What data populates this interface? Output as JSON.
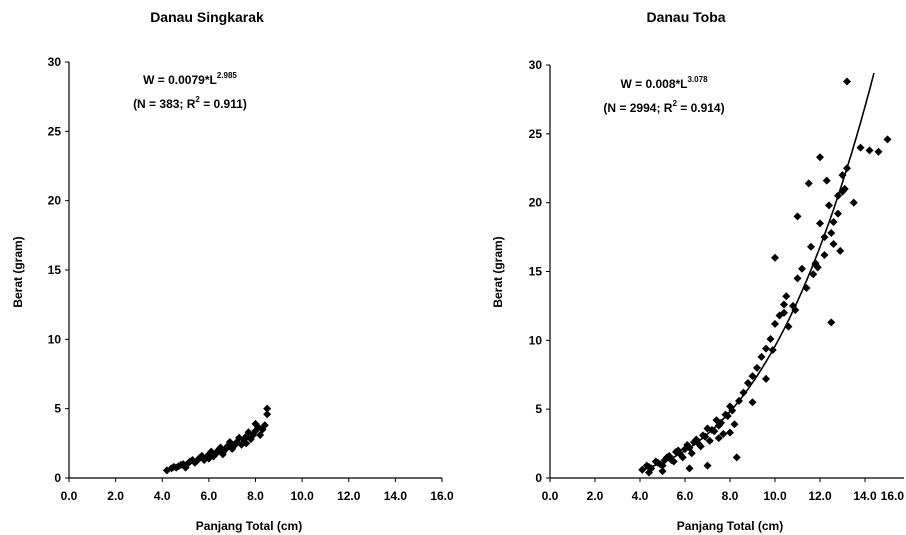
{
  "chart_data": [
    {
      "type": "scatter",
      "title": "Danau Singkarak",
      "xlabel": "Panjang Total (cm)",
      "ylabel": "Berat (gram)",
      "xlim": [
        0,
        16
      ],
      "ylim": [
        0,
        30
      ],
      "xticks": [
        "0.0",
        "2.0",
        "4.0",
        "6.0",
        "8.0",
        "10.0",
        "12.0",
        "14.0",
        "16.0"
      ],
      "yticks": [
        "0",
        "5",
        "10",
        "15",
        "20",
        "25",
        "30"
      ],
      "equation": {
        "lhs": "W = 0.0079*L",
        "exponent": "2.985",
        "stats_prefix": "(N = 383; R",
        "r2_exp": "2",
        "stats_suffix": " = 0.911)"
      },
      "model": {
        "a": 0.0079,
        "b": 2.985
      },
      "series": [
        {
          "x": [
            4.2,
            4.4,
            4.6,
            4.8,
            5.0,
            5.2,
            5.4,
            5.6,
            5.8,
            6.0,
            6.2,
            6.4,
            6.6,
            6.8,
            7.0,
            7.2,
            7.4,
            7.6,
            7.8,
            8.0,
            8.2,
            8.4,
            4.5,
            4.9,
            5.3,
            5.7,
            6.1,
            6.5,
            6.9,
            7.3,
            7.7,
            8.1,
            8.5,
            5.1,
            5.5,
            5.9,
            6.3,
            6.7,
            7.1,
            7.5,
            7.9,
            8.3,
            4.7,
            6.0,
            7.0,
            8.0,
            8.5,
            5.0,
            6.6,
            7.6
          ],
          "y": [
            0.55,
            0.7,
            0.75,
            0.95,
            0.9,
            1.2,
            1.1,
            1.45,
            1.3,
            1.7,
            1.55,
            2.0,
            1.85,
            2.3,
            2.1,
            2.6,
            2.4,
            3.0,
            2.8,
            3.4,
            3.1,
            3.8,
            0.8,
            1.0,
            1.3,
            1.6,
            1.9,
            2.2,
            2.6,
            2.9,
            3.3,
            3.7,
            4.6,
            1.05,
            1.25,
            1.5,
            1.75,
            2.05,
            2.35,
            2.75,
            3.1,
            3.5,
            0.85,
            1.4,
            2.2,
            3.9,
            5.0,
            0.75,
            1.7,
            2.5
          ]
        }
      ]
    },
    {
      "type": "scatter",
      "title": "Danau Toba",
      "xlabel": "Panjang Total (cm)",
      "ylabel": "Berat (gram)",
      "xlim": [
        0,
        16
      ],
      "ylim": [
        0,
        30
      ],
      "xticks": [
        "0.0",
        "2.0",
        "4.0",
        "6.0",
        "8.0",
        "10.0",
        "12.0",
        "14.0",
        "16.0"
      ],
      "yticks": [
        "0",
        "5",
        "10",
        "15",
        "20",
        "25",
        "30"
      ],
      "equation": {
        "lhs": "W = 0.008*L",
        "exponent": "3.078",
        "stats_prefix": "(N = 2994; R",
        "r2_exp": "2",
        "stats_suffix": " = 0.914)"
      },
      "model": {
        "a": 0.008,
        "b": 3.078
      },
      "series": [
        {
          "x": [
            4.1,
            4.3,
            4.5,
            4.7,
            4.9,
            5.1,
            5.3,
            5.5,
            5.7,
            5.9,
            6.1,
            6.3,
            6.5,
            6.7,
            6.9,
            7.1,
            7.3,
            7.5,
            7.7,
            7.9,
            8.1,
            4.4,
            4.8,
            5.2,
            5.6,
            6.0,
            6.4,
            6.8,
            7.2,
            7.6,
            8.0,
            5.0,
            5.4,
            5.8,
            6.2,
            6.6,
            7.0,
            7.4,
            7.8,
            8.2,
            8.4,
            8.6,
            8.8,
            9.0,
            9.2,
            9.4,
            9.6,
            9.8,
            10.0,
            10.2,
            10.4,
            10.6,
            10.8,
            11.0,
            11.2,
            11.4,
            11.6,
            11.8,
            12.0,
            12.2,
            12.4,
            12.6,
            12.8,
            13.0,
            9.0,
            9.6,
            10.0,
            10.5,
            11.0,
            11.5,
            12.0,
            12.5,
            13.0,
            11.8,
            12.3,
            12.6,
            13.2,
            13.5,
            13.8,
            14.2,
            14.6,
            15.0,
            13.2,
            12.5,
            8.3,
            10.4,
            11.9,
            12.9,
            9.9,
            10.9,
            11.7,
            12.2,
            12.8,
            13.1,
            7.0,
            6.2,
            5.0,
            4.4,
            7.5,
            8.0
          ],
          "y": [
            0.6,
            0.9,
            0.7,
            1.2,
            1.0,
            1.3,
            1.6,
            1.2,
            2.0,
            1.5,
            2.4,
            1.8,
            2.8,
            2.3,
            3.0,
            2.7,
            3.4,
            3.8,
            3.2,
            4.5,
            4.9,
            0.8,
            1.1,
            1.5,
            1.9,
            2.1,
            2.6,
            3.1,
            3.5,
            4.0,
            5.2,
            0.9,
            1.3,
            1.7,
            2.2,
            2.5,
            3.6,
            4.2,
            4.6,
            3.9,
            5.6,
            6.2,
            6.9,
            7.4,
            8.0,
            8.8,
            9.4,
            10.1,
            11.2,
            11.8,
            12.6,
            11.0,
            12.5,
            14.5,
            15.2,
            13.8,
            16.8,
            15.5,
            18.5,
            16.2,
            19.8,
            17.0,
            20.5,
            22.0,
            5.5,
            7.2,
            16.0,
            13.2,
            19.0,
            21.4,
            23.3,
            17.8,
            20.8,
            15.6,
            21.6,
            18.6,
            22.5,
            20.0,
            24.0,
            23.8,
            23.7,
            24.6,
            28.8,
            11.3,
            1.5,
            12.0,
            15.3,
            16.5,
            9.3,
            12.2,
            14.8,
            17.5,
            19.2,
            21.0,
            0.9,
            0.7,
            0.5,
            0.4,
            2.9,
            3.3
          ]
        }
      ]
    }
  ]
}
